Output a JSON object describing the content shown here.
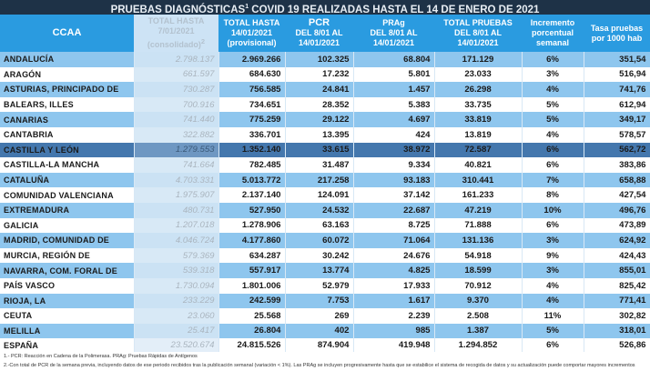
{
  "title": {
    "main": "PRUEBAS DIAGNÓSTICAS",
    "sup": "1",
    "rest": " COVID 19 REALIZADAS HASTA EL 14 DE ENERO DE 2021"
  },
  "headers": {
    "ccaa": "CCAA",
    "total_prev": [
      "TOTAL HASTA",
      "7/01/2021",
      "(consolidado)"
    ],
    "total_prev_sup": "2",
    "total": [
      "TOTAL  HASTA",
      "14/01/2021",
      "(provisional)"
    ],
    "pcr": [
      "PCR",
      "DEL 8/01 AL",
      "14/01/2021"
    ],
    "prag": [
      "PRAg",
      "DEL 8/01 AL",
      "14/01/2021"
    ],
    "total_pruebas": [
      "TOTAL PRUEBAS",
      "DEL 8/01 AL",
      "14/01/2021"
    ],
    "incremento": [
      "Incremento",
      "porcentual",
      "semanal"
    ],
    "tasa": [
      "Tasa pruebas",
      "por 1000 hab"
    ]
  },
  "rows": [
    [
      "ANDALUCÍA",
      "2.798.137",
      "2.969.266",
      "102.325",
      "68.804",
      "171.129",
      "6%",
      "351,54"
    ],
    [
      "ARAGÓN",
      "661.597",
      "684.630",
      "17.232",
      "5.801",
      "23.033",
      "3%",
      "516,94"
    ],
    [
      "ASTURIAS, PRINCIPADO DE",
      "730.287",
      "756.585",
      "24.841",
      "1.457",
      "26.298",
      "4%",
      "741,76"
    ],
    [
      "BALEARS, ILLES",
      "700.916",
      "734.651",
      "28.352",
      "5.383",
      "33.735",
      "5%",
      "612,94"
    ],
    [
      "CANARIAS",
      "741.440",
      "775.259",
      "29.122",
      "4.697",
      "33.819",
      "5%",
      "349,17"
    ],
    [
      "CANTABRIA",
      "322.882",
      "336.701",
      "13.395",
      "424",
      "13.819",
      "4%",
      "578,57"
    ],
    [
      "CASTILLA Y LEÓN",
      "1.279.553",
      "1.352.140",
      "33.615",
      "38.972",
      "72.587",
      "6%",
      "562,72"
    ],
    [
      "CASTILLA-LA MANCHA",
      "741.664",
      "782.485",
      "31.487",
      "9.334",
      "40.821",
      "6%",
      "383,86"
    ],
    [
      "CATALUÑA",
      "4.703.331",
      "5.013.772",
      "217.258",
      "93.183",
      "310.441",
      "7%",
      "658,88"
    ],
    [
      "COMUNIDAD VALENCIANA",
      "1.975.907",
      "2.137.140",
      "124.091",
      "37.142",
      "161.233",
      "8%",
      "427,54"
    ],
    [
      "EXTREMADURA",
      "480.731",
      "527.950",
      "24.532",
      "22.687",
      "47.219",
      "10%",
      "496,76"
    ],
    [
      "GALICIA",
      "1.207.018",
      "1.278.906",
      "63.163",
      "8.725",
      "71.888",
      "6%",
      "473,89"
    ],
    [
      "MADRID, COMUNIDAD DE",
      "4.046.724",
      "4.177.860",
      "60.072",
      "71.064",
      "131.136",
      "3%",
      "624,92"
    ],
    [
      "MURCIA, REGIÓN DE",
      "579.369",
      "634.287",
      "30.242",
      "24.676",
      "54.918",
      "9%",
      "424,43"
    ],
    [
      "NAVARRA, COM. FORAL DE",
      "539.318",
      "557.917",
      "13.774",
      "4.825",
      "18.599",
      "3%",
      "855,01"
    ],
    [
      "PAÍS VASCO",
      "1.730.094",
      "1.801.006",
      "52.979",
      "17.933",
      "70.912",
      "4%",
      "825,42"
    ],
    [
      "RIOJA, LA",
      "233.229",
      "242.599",
      "7.753",
      "1.617",
      "9.370",
      "4%",
      "771,41"
    ],
    [
      "CEUTA",
      "23.060",
      "25.568",
      "269",
      "2.239",
      "2.508",
      "11%",
      "302,82"
    ],
    [
      "MELILLA",
      "25.417",
      "26.804",
      "402",
      "985",
      "1.387",
      "5%",
      "318,01"
    ]
  ],
  "total_row": [
    "ESPAÑA",
    "23.520.674",
    "24.815.526",
    "874.904",
    "419.948",
    "1.294.852",
    "6%",
    "526,86"
  ],
  "footnotes": [
    "1.- PCR: Reacción en Cadena de la Polimerasa. PRAg: Pruebas Rápidas de Antígenos",
    "2.-Con total de PCR de la semana previa, incluyendo datos de ese periodo recibidos tras la publicación semanal (variación < 1%). Las PRAg se incluyen progresivamente hasta que se estabilice el sistema de recogida de datos y su actualización puede comportar mayores incrementos"
  ]
}
